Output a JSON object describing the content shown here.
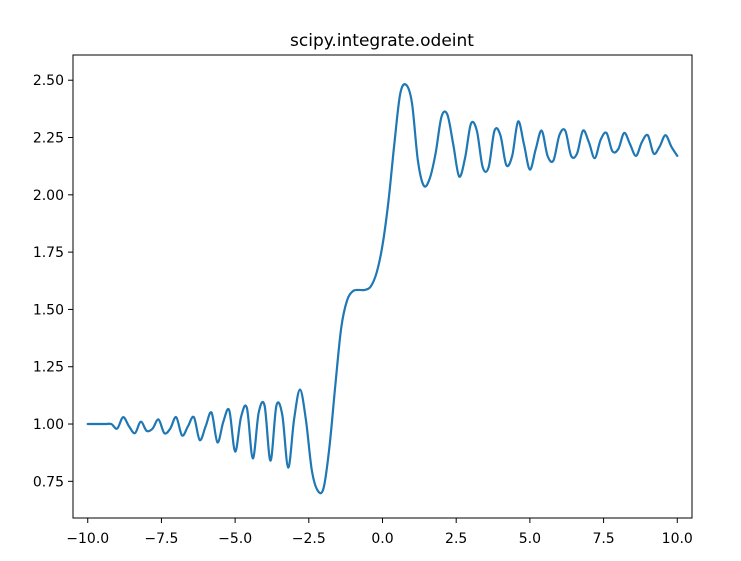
{
  "chart_data": {
    "type": "line",
    "title": "scipy.integrate.odeint",
    "xlabel": "",
    "ylabel": "",
    "xlim": [
      -10.5,
      10.5
    ],
    "ylim": [
      0.59,
      2.61
    ],
    "grid": false,
    "xticks": [
      {
        "value": -10,
        "label": "−10.0"
      },
      {
        "value": -7.5,
        "label": "−7.5"
      },
      {
        "value": -5,
        "label": "−5.0"
      },
      {
        "value": -2.5,
        "label": "−2.5"
      },
      {
        "value": 0,
        "label": "0.0"
      },
      {
        "value": 2.5,
        "label": "2.5"
      },
      {
        "value": 5,
        "label": "5.0"
      },
      {
        "value": 7.5,
        "label": "7.5"
      },
      {
        "value": 10,
        "label": "10.0"
      }
    ],
    "yticks": [
      {
        "value": 0.75,
        "label": "0.75"
      },
      {
        "value": 1.0,
        "label": "1.00"
      },
      {
        "value": 1.25,
        "label": "1.25"
      },
      {
        "value": 1.5,
        "label": "1.50"
      },
      {
        "value": 1.75,
        "label": "1.75"
      },
      {
        "value": 2.0,
        "label": "2.00"
      },
      {
        "value": 2.25,
        "label": "2.25"
      },
      {
        "value": 2.5,
        "label": "2.50"
      }
    ],
    "series": [
      {
        "color": "#1f77b4",
        "x": [
          -10.0,
          -9.8,
          -9.6,
          -9.4,
          -9.2,
          -9.0,
          -8.8,
          -8.6,
          -8.4,
          -8.2,
          -8.0,
          -7.8,
          -7.6,
          -7.4,
          -7.2,
          -7.0,
          -6.8,
          -6.6,
          -6.4,
          -6.2,
          -6.0,
          -5.8,
          -5.6,
          -5.4,
          -5.2,
          -5.0,
          -4.8,
          -4.6,
          -4.4,
          -4.2,
          -4.0,
          -3.8,
          -3.6,
          -3.4,
          -3.2,
          -3.0,
          -2.8,
          -2.6,
          -2.4,
          -2.2,
          -2.0,
          -1.8,
          -1.6,
          -1.4,
          -1.2,
          -1.0,
          -0.8,
          -0.6,
          -0.4,
          -0.2,
          0.0,
          0.2,
          0.4,
          0.6,
          0.8,
          1.0,
          1.2,
          1.4,
          1.6,
          1.8,
          2.0,
          2.2,
          2.4,
          2.6,
          2.8,
          3.0,
          3.2,
          3.4,
          3.6,
          3.8,
          4.0,
          4.2,
          4.4,
          4.6,
          4.8,
          5.0,
          5.2,
          5.4,
          5.6,
          5.8,
          6.0,
          6.2,
          6.4,
          6.6,
          6.8,
          7.0,
          7.2,
          7.4,
          7.6,
          7.8,
          8.0,
          8.2,
          8.4,
          8.6,
          8.8,
          9.0,
          9.2,
          9.4,
          9.6,
          9.8,
          10.0
        ],
        "y": [
          1.0,
          1.0,
          1.0,
          1.0,
          1.0,
          0.98,
          1.03,
          0.99,
          0.96,
          1.01,
          0.97,
          0.98,
          1.02,
          0.96,
          0.98,
          1.03,
          0.95,
          0.99,
          1.03,
          0.93,
          0.99,
          1.05,
          0.92,
          1.01,
          1.06,
          0.88,
          1.03,
          1.07,
          0.85,
          1.05,
          1.08,
          0.84,
          1.08,
          1.04,
          0.81,
          1.02,
          1.15,
          1.02,
          0.8,
          0.71,
          0.72,
          0.9,
          1.17,
          1.42,
          1.54,
          1.58,
          1.585,
          1.585,
          1.6,
          1.66,
          1.78,
          1.97,
          2.22,
          2.44,
          2.48,
          2.4,
          2.15,
          2.04,
          2.07,
          2.18,
          2.34,
          2.35,
          2.22,
          2.08,
          2.16,
          2.31,
          2.28,
          2.12,
          2.12,
          2.28,
          2.26,
          2.13,
          2.17,
          2.32,
          2.22,
          2.11,
          2.2,
          2.28,
          2.17,
          2.15,
          2.26,
          2.28,
          2.17,
          2.18,
          2.28,
          2.23,
          2.16,
          2.24,
          2.27,
          2.19,
          2.2,
          2.27,
          2.22,
          2.17,
          2.23,
          2.26,
          2.18,
          2.21,
          2.26,
          2.21,
          2.17
        ]
      }
    ]
  }
}
